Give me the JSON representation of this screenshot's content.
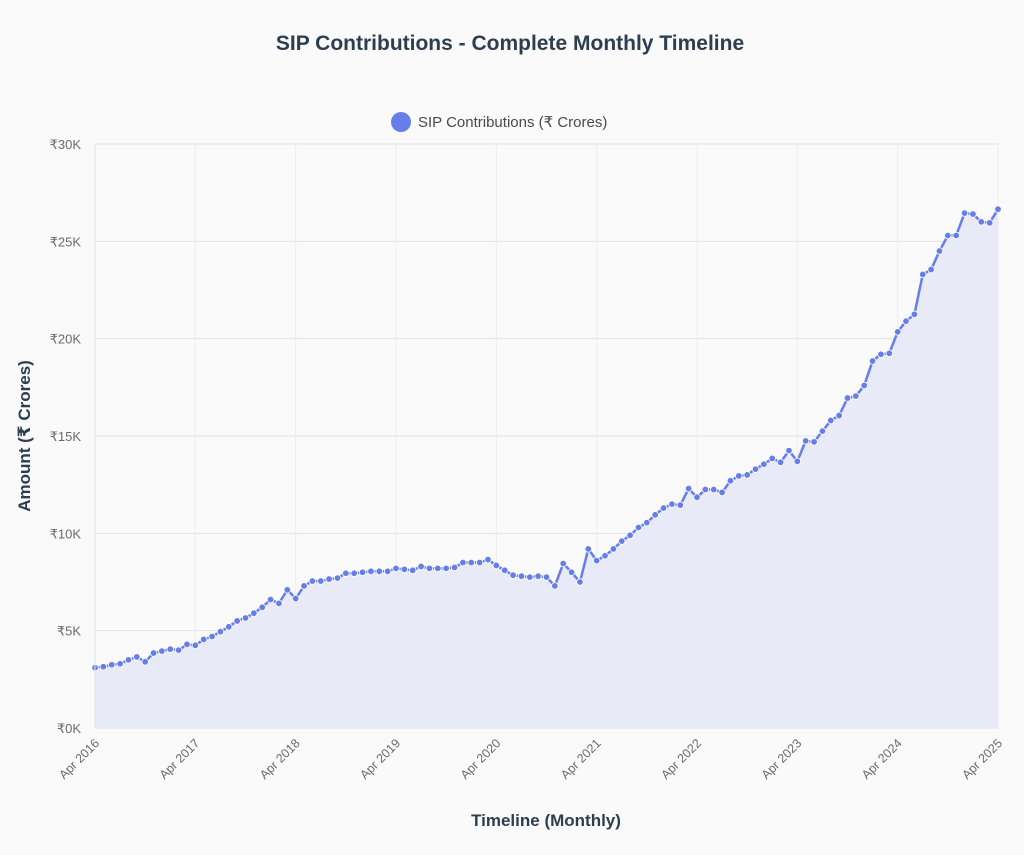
{
  "chart_data": {
    "type": "line",
    "title": "SIP Contributions - Complete Monthly Timeline",
    "xlabel": "Timeline (Monthly)",
    "ylabel": "Amount (₹ Crores)",
    "ylim": [
      0,
      30000
    ],
    "y_ticks": [
      {
        "value": 0,
        "label": "₹0K"
      },
      {
        "value": 5000,
        "label": "₹5K"
      },
      {
        "value": 10000,
        "label": "₹10K"
      },
      {
        "value": 15000,
        "label": "₹15K"
      },
      {
        "value": 20000,
        "label": "₹20K"
      },
      {
        "value": 25000,
        "label": "₹25K"
      },
      {
        "value": 30000,
        "label": "₹30K"
      }
    ],
    "x_range": [
      "Apr 2016",
      "Apr 2025"
    ],
    "x_ticks": [
      "Apr 2016",
      "Apr 2017",
      "Apr 2018",
      "Apr 2019",
      "Apr 2020",
      "Apr 2021",
      "Apr 2022",
      "Apr 2023",
      "Apr 2024",
      "Apr 2025"
    ],
    "grid": true,
    "legend_position": "top-center",
    "series": [
      {
        "name": "SIP Contributions (₹ Crores)",
        "color": "#667eea",
        "fill": "#e9eaf8",
        "x": [
          "Apr 2016",
          "May 2016",
          "Jun 2016",
          "Jul 2016",
          "Aug 2016",
          "Sep 2016",
          "Oct 2016",
          "Nov 2016",
          "Dec 2016",
          "Jan 2017",
          "Feb 2017",
          "Mar 2017",
          "Apr 2017",
          "May 2017",
          "Jun 2017",
          "Jul 2017",
          "Aug 2017",
          "Sep 2017",
          "Oct 2017",
          "Nov 2017",
          "Dec 2017",
          "Jan 2018",
          "Feb 2018",
          "Mar 2018",
          "Apr 2018",
          "May 2018",
          "Jun 2018",
          "Jul 2018",
          "Aug 2018",
          "Sep 2018",
          "Oct 2018",
          "Nov 2018",
          "Dec 2018",
          "Jan 2019",
          "Feb 2019",
          "Mar 2019",
          "Apr 2019",
          "May 2019",
          "Jun 2019",
          "Jul 2019",
          "Aug 2019",
          "Sep 2019",
          "Oct 2019",
          "Nov 2019",
          "Dec 2019",
          "Jan 2020",
          "Feb 2020",
          "Mar 2020",
          "Apr 2020",
          "May 2020",
          "Jun 2020",
          "Jul 2020",
          "Aug 2020",
          "Sep 2020",
          "Oct 2020",
          "Nov 2020",
          "Dec 2020",
          "Jan 2021",
          "Feb 2021",
          "Mar 2021",
          "Apr 2021",
          "May 2021",
          "Jun 2021",
          "Jul 2021",
          "Aug 2021",
          "Sep 2021",
          "Oct 2021",
          "Nov 2021",
          "Dec 2021",
          "Jan 2022",
          "Feb 2022",
          "Mar 2022",
          "Apr 2022",
          "May 2022",
          "Jun 2022",
          "Jul 2022",
          "Aug 2022",
          "Sep 2022",
          "Oct 2022",
          "Nov 2022",
          "Dec 2022",
          "Jan 2023",
          "Feb 2023",
          "Mar 2023",
          "Apr 2023",
          "May 2023",
          "Jun 2023",
          "Jul 2023",
          "Aug 2023",
          "Sep 2023",
          "Oct 2023",
          "Nov 2023",
          "Dec 2023",
          "Jan 2024",
          "Feb 2024",
          "Mar 2024",
          "Apr 2024",
          "May 2024",
          "Jun 2024",
          "Jul 2024",
          "Aug 2024",
          "Sep 2024",
          "Oct 2024",
          "Nov 2024",
          "Dec 2024",
          "Jan 2025",
          "Feb 2025",
          "Mar 2025",
          "Apr 2025"
        ],
        "values": [
          3100,
          3150,
          3250,
          3300,
          3500,
          3650,
          3400,
          3850,
          3950,
          4050,
          4000,
          4300,
          4250,
          4550,
          4700,
          4950,
          5200,
          5500,
          5650,
          5900,
          6200,
          6600,
          6400,
          7100,
          6650,
          7300,
          7550,
          7550,
          7650,
          7700,
          7950,
          7950,
          8000,
          8050,
          8050,
          8050,
          8200,
          8150,
          8100,
          8300,
          8200,
          8200,
          8200,
          8250,
          8500,
          8500,
          8500,
          8650,
          8350,
          8100,
          7850,
          7800,
          7750,
          7800,
          7750,
          7300,
          8450,
          8000,
          7500,
          9200,
          8600,
          8850,
          9200,
          9600,
          9900,
          10300,
          10550,
          10950,
          11300,
          11500,
          11450,
          12300,
          11850,
          12250,
          12250,
          12100,
          12700,
          12950,
          13000,
          13300,
          13550,
          13850,
          13650,
          14250,
          13700,
          14750,
          14700,
          15250,
          15800,
          16050,
          16950,
          17050,
          17600,
          18850,
          19200,
          19250,
          20350,
          20900,
          21250,
          23300,
          23550,
          24500,
          25300,
          25300,
          26450,
          26400,
          26000,
          25950,
          26650
        ]
      }
    ]
  }
}
